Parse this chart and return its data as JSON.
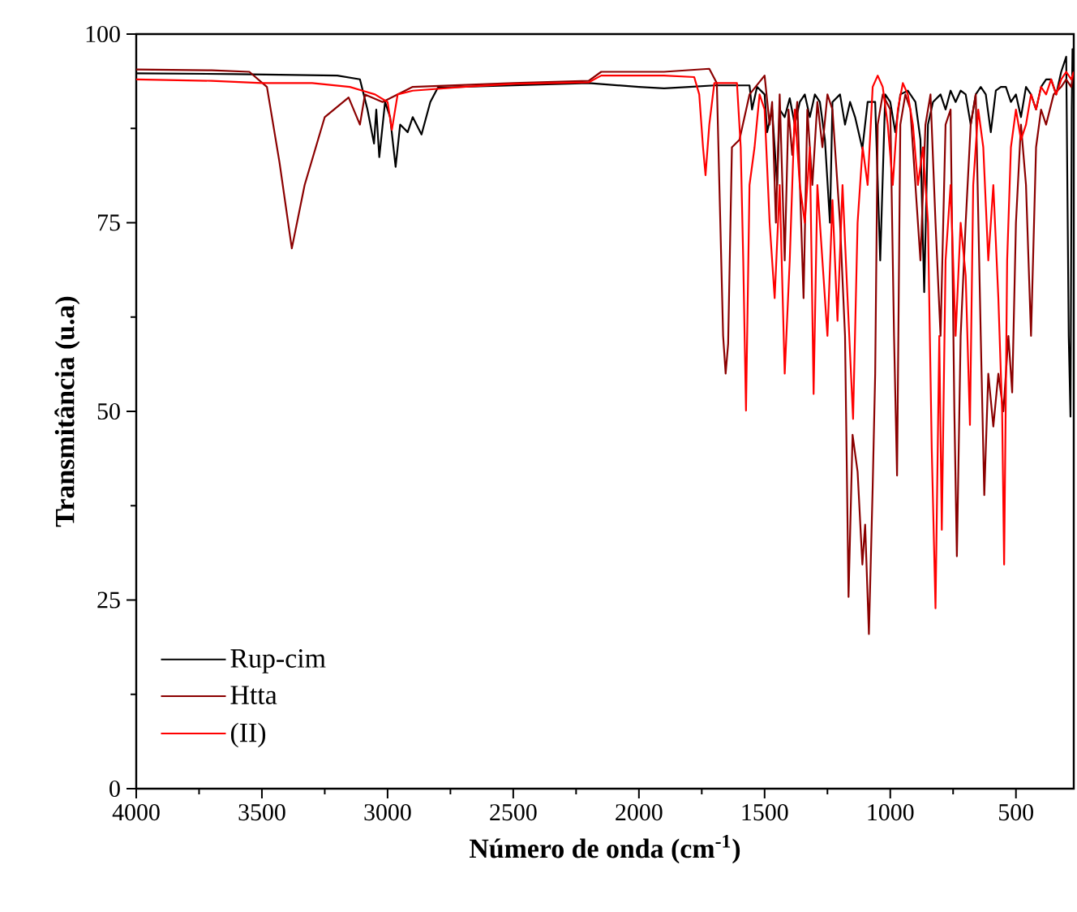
{
  "chart_data": {
    "type": "line",
    "xlabel": "Número de onda (cm$^{-1}$)",
    "ylabel": "Transmitância (u.a)",
    "xlim": [
      4000,
      270
    ],
    "ylim": [
      0,
      100
    ],
    "xticks": [
      4000,
      {
        "value": 3750,
        "label": null
      },
      3500,
      {
        "value": 3250,
        "label": null
      },
      3000,
      {
        "value": 2750,
        "label": null
      },
      2500,
      {
        "value": 2250,
        "label": null
      },
      2000,
      {
        "value": 1750,
        "label": null
      },
      1500,
      {
        "value": 1250,
        "label": null
      },
      1000,
      {
        "value": 750,
        "label": null
      },
      500
    ],
    "yticks": [
      0,
      {
        "value": 12.5,
        "label": null
      },
      25,
      {
        "value": 37.5,
        "label": null
      },
      50,
      {
        "value": 62.5,
        "label": null
      },
      75,
      {
        "value": 87.5,
        "label": null
      },
      100
    ],
    "legend": "bottom left",
    "grid": false,
    "marker": "none",
    "line_style": "solid",
    "series": [
      {
        "name": "Rup-cim",
        "color": "#000000",
        "x": [
          4000,
          3600,
          3200,
          3110,
          3080,
          3054,
          3045,
          3033,
          3010,
          2990,
          2968,
          2950,
          2920,
          2900,
          2865,
          2830,
          2800,
          2500,
          2200,
          2000,
          1900,
          1800,
          1700,
          1560,
          1550,
          1530,
          1500,
          1490,
          1470,
          1450,
          1440,
          1420,
          1400,
          1380,
          1360,
          1340,
          1320,
          1300,
          1280,
          1260,
          1240,
          1230,
          1200,
          1180,
          1160,
          1140,
          1111,
          1090,
          1060,
          1040,
          1020,
          1000,
          980,
          960,
          930,
          900,
          880,
          865,
          850,
          830,
          800,
          780,
          760,
          740,
          720,
          700,
          680,
          660,
          640,
          620,
          600,
          580,
          560,
          540,
          520,
          500,
          480,
          460,
          440,
          420,
          400,
          380,
          360,
          340,
          320,
          300,
          290,
          283,
          278,
          275,
          270
        ],
        "values": [
          94.8,
          94.7,
          94.5,
          94,
          90,
          85.5,
          90,
          83.7,
          91,
          89,
          82.4,
          88,
          87,
          89,
          86.7,
          91,
          92.9,
          93.2,
          93.5,
          93,
          92.8,
          93,
          93.2,
          93.2,
          90,
          93,
          92,
          87,
          90,
          80,
          90,
          89,
          91.5,
          88,
          91,
          92,
          89,
          92,
          91,
          86,
          75,
          91,
          92,
          88,
          91,
          89,
          84.8,
          91,
          91,
          70,
          92,
          91,
          87,
          92,
          92.5,
          91,
          86,
          65.8,
          88,
          91,
          92,
          90,
          92.5,
          91,
          92.5,
          92,
          88,
          92,
          93,
          92,
          87,
          92.5,
          93,
          93,
          91,
          92,
          89,
          93,
          92,
          90,
          93,
          94,
          94,
          92,
          95,
          97,
          60,
          49.3,
          90,
          98,
          95
        ]
      },
      {
        "name": "Htta",
        "color": "#8b0000",
        "x": [
          4000,
          3700,
          3550,
          3480,
          3430,
          3381,
          3330,
          3250,
          3155,
          3110,
          3090,
          3020,
          2900,
          2500,
          2200,
          2150,
          1900,
          1720,
          1690,
          1665,
          1655,
          1645,
          1630,
          1600,
          1560,
          1500,
          1480,
          1470,
          1455,
          1440,
          1420,
          1405,
          1390,
          1370,
          1345,
          1330,
          1310,
          1290,
          1270,
          1250,
          1230,
          1200,
          1180,
          1166,
          1150,
          1130,
          1111,
          1100,
          1085,
          1070,
          1060,
          1050,
          1030,
          1000,
          985,
          973,
          960,
          940,
          920,
          900,
          880,
          860,
          840,
          820,
          800,
          780,
          760,
          745,
          735,
          720,
          700,
          680,
          660,
          640,
          626,
          610,
          590,
          570,
          550,
          530,
          515,
          500,
          480,
          460,
          440,
          420,
          400,
          380,
          350,
          320,
          300,
          280,
          270
        ],
        "values": [
          95.3,
          95.2,
          95,
          93,
          83,
          71.6,
          80,
          89,
          91.6,
          88,
          92,
          91,
          93,
          93.5,
          93.8,
          95,
          95,
          95.4,
          93.5,
          60,
          55,
          59,
          85,
          86,
          92,
          94.5,
          88,
          91,
          75,
          92,
          70,
          90,
          84,
          91,
          65,
          90,
          80,
          91,
          85,
          92,
          90,
          75,
          60,
          25.4,
          46.9,
          42,
          29.7,
          35,
          20.5,
          40,
          55,
          88,
          92,
          90,
          60,
          41.5,
          88,
          92,
          90,
          80,
          70,
          88,
          92,
          75,
          60,
          88,
          90,
          50,
          30.8,
          60,
          75,
          88,
          92,
          60,
          38.9,
          55,
          48,
          55,
          50,
          60,
          52.5,
          75,
          88,
          80,
          60,
          85,
          90,
          88,
          92,
          93,
          94,
          93,
          95
        ]
      },
      {
        "name": "(II)",
        "color": "#ff0000",
        "x": [
          4000,
          3700,
          3500,
          3300,
          3150,
          3100,
          3050,
          3000,
          2983,
          2960,
          2900,
          2700,
          2500,
          2200,
          2150,
          1900,
          1780,
          1760,
          1745,
          1735,
          1720,
          1700,
          1650,
          1610,
          1595,
          1585,
          1574,
          1560,
          1540,
          1520,
          1500,
          1480,
          1460,
          1440,
          1420,
          1400,
          1380,
          1360,
          1340,
          1320,
          1305,
          1290,
          1270,
          1250,
          1230,
          1210,
          1190,
          1170,
          1148,
          1130,
          1110,
          1090,
          1070,
          1050,
          1030,
          1010,
          990,
          970,
          950,
          930,
          910,
          890,
          870,
          850,
          835,
          820,
          805,
          795,
          780,
          760,
          740,
          720,
          700,
          683,
          670,
          650,
          630,
          610,
          590,
          570,
          555,
          547,
          535,
          520,
          500,
          480,
          460,
          440,
          420,
          400,
          380,
          360,
          340,
          320,
          300,
          280,
          270
        ],
        "values": [
          94,
          93.8,
          93.5,
          93.5,
          93,
          92.5,
          92,
          91,
          87.3,
          92,
          92.5,
          93,
          93.4,
          93.6,
          94.5,
          94.5,
          94.3,
          92,
          85,
          81.3,
          88,
          93.5,
          93.5,
          93.5,
          85,
          70,
          50.1,
          80,
          85,
          92,
          90,
          75,
          65,
          80,
          55,
          70,
          90,
          80,
          75,
          85,
          52.3,
          80,
          70,
          60,
          78,
          62,
          80,
          65,
          49,
          75,
          85,
          80,
          93,
          94.5,
          93,
          88,
          80,
          90,
          93.5,
          92,
          88,
          80,
          85,
          75,
          45,
          23.9,
          60,
          34.3,
          70,
          80,
          60,
          75,
          68,
          48.2,
          80,
          90,
          85,
          70,
          80,
          65,
          50,
          29.7,
          70,
          85,
          90,
          86,
          88,
          92,
          90,
          93,
          92,
          94,
          92,
          94,
          95,
          94,
          95
        ]
      }
    ]
  }
}
